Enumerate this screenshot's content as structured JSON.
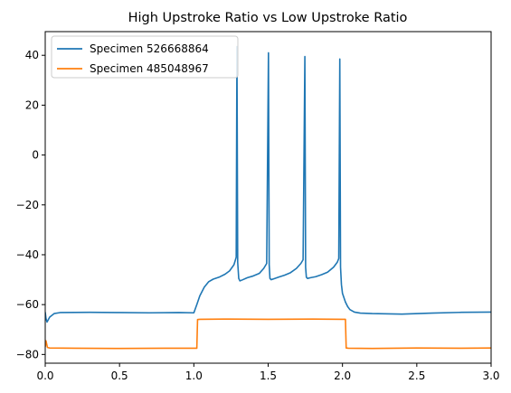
{
  "chart_data": {
    "type": "line",
    "title": "High Upstroke Ratio vs Low Upstroke Ratio",
    "xlabel": "",
    "ylabel": "",
    "xlim": [
      0.0,
      3.0
    ],
    "ylim": [
      -83.5,
      49.5
    ],
    "xticks": [
      "0.0",
      "0.5",
      "1.0",
      "1.5",
      "2.0",
      "2.5",
      "3.0"
    ],
    "yticks": [
      "40",
      "20",
      "0",
      "−20",
      "−40",
      "−60",
      "−80"
    ],
    "xtick_values": [
      0.0,
      0.5,
      1.0,
      1.5,
      2.0,
      2.5,
      3.0
    ],
    "ytick_values": [
      40,
      20,
      0,
      -20,
      -40,
      -60,
      -80
    ],
    "grid": false,
    "legend_position": "top-left",
    "series": [
      {
        "name": "Specimen 526668864",
        "color": "#1f77b4",
        "x": [
          0.0,
          0.005,
          0.012,
          0.03,
          0.06,
          0.1,
          0.3,
          0.5,
          0.7,
          0.9,
          1.0,
          1.02,
          1.04,
          1.07,
          1.1,
          1.13,
          1.17,
          1.21,
          1.24,
          1.27,
          1.285,
          1.29,
          1.295,
          1.302,
          1.31,
          1.33,
          1.36,
          1.4,
          1.44,
          1.47,
          1.49,
          1.502,
          1.507,
          1.512,
          1.52,
          1.54,
          1.57,
          1.61,
          1.65,
          1.69,
          1.72,
          1.735,
          1.747,
          1.752,
          1.757,
          1.765,
          1.785,
          1.82,
          1.86,
          1.9,
          1.94,
          1.965,
          1.975,
          1.982,
          1.987,
          1.993,
          2.0,
          2.02,
          2.035,
          2.05,
          2.08,
          2.12,
          2.2,
          2.4,
          2.6,
          2.8,
          3.0
        ],
        "y": [
          -63.0,
          -65.5,
          -67.0,
          -65.0,
          -63.6,
          -63.2,
          -63.1,
          -63.2,
          -63.3,
          -63.2,
          -63.3,
          -60.0,
          -56.5,
          -53.0,
          -50.8,
          -49.8,
          -49.0,
          -47.8,
          -46.5,
          -44.0,
          -41.0,
          43.5,
          -43.0,
          -49.5,
          -50.5,
          -50.0,
          -49.2,
          -48.5,
          -47.5,
          -45.5,
          -43.5,
          41.0,
          -44.0,
          -49.5,
          -50.0,
          -49.6,
          -49.0,
          -48.2,
          -47.2,
          -45.5,
          -43.5,
          -42.0,
          39.5,
          -45.0,
          -49.0,
          -49.5,
          -49.2,
          -48.8,
          -48.0,
          -47.0,
          -45.0,
          -43.0,
          -41.5,
          38.5,
          -45.0,
          -52.0,
          -55.5,
          -59.0,
          -60.8,
          -62.0,
          -63.0,
          -63.4,
          -63.6,
          -63.8,
          -63.4,
          -63.1,
          -63.0
        ]
      },
      {
        "name": "Specimen 485048967",
        "color": "#ff7f0e",
        "x": [
          0.0,
          0.005,
          0.015,
          0.03,
          0.2,
          0.5,
          0.8,
          1.0,
          1.02,
          1.025,
          1.04,
          1.2,
          1.5,
          1.8,
          2.0,
          2.02,
          2.025,
          2.04,
          2.2,
          2.5,
          2.8,
          3.0
        ],
        "y": [
          -77.0,
          -74.5,
          -77.2,
          -77.4,
          -77.5,
          -77.6,
          -77.5,
          -77.5,
          -77.5,
          -66.0,
          -65.9,
          -65.8,
          -65.9,
          -65.8,
          -65.9,
          -65.9,
          -77.4,
          -77.5,
          -77.6,
          -77.4,
          -77.5,
          -77.4
        ]
      }
    ]
  }
}
